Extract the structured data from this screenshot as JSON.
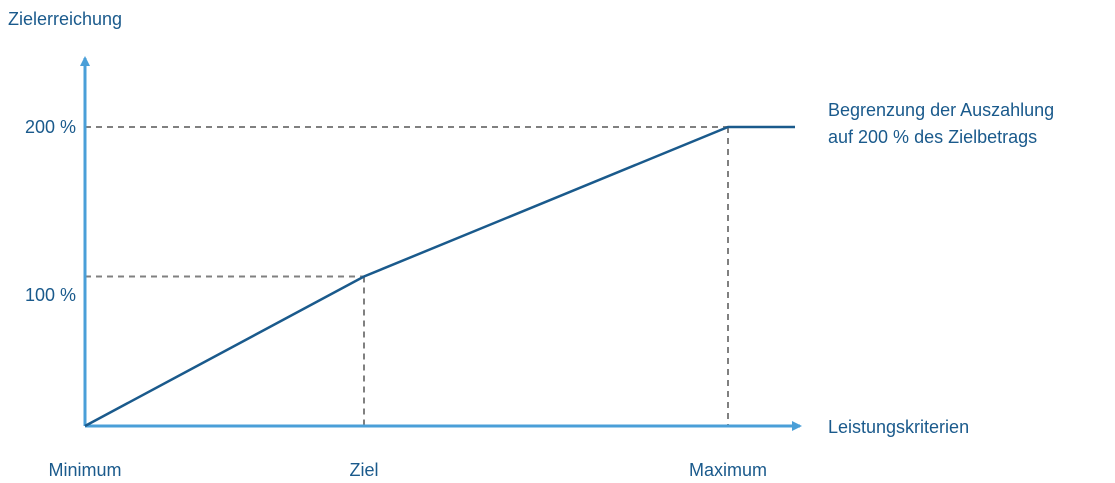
{
  "colors": {
    "axis": "#4a9fd8",
    "line": "#1a5a8c",
    "guide": "#808080",
    "text": "#1a5a8c"
  },
  "chart_data": {
    "type": "line",
    "title": "",
    "ylabel": "Zielerreichung",
    "xlabel": "Leistungskriterien",
    "x_ticks": [
      "Minimum",
      "Ziel",
      "Maximum"
    ],
    "y_ticks": [
      "100 %",
      "200 %"
    ],
    "x_scale": "categorical",
    "series": [
      {
        "points": [
          {
            "x": "Minimum",
            "y": 0
          },
          {
            "x": "Ziel",
            "y": 100
          },
          {
            "x": "Maximum",
            "y": 200
          }
        ],
        "continues_flat_after_maximum": true
      }
    ],
    "reference_lines": [
      {
        "x": "Ziel",
        "y": 100,
        "style": "dashed"
      },
      {
        "x": "Maximum",
        "y": 200,
        "style": "dashed"
      }
    ],
    "annotation": {
      "line1": "Begrenzung der Auszahlung",
      "line2": "auf 200 % des Zielbetrags"
    }
  }
}
